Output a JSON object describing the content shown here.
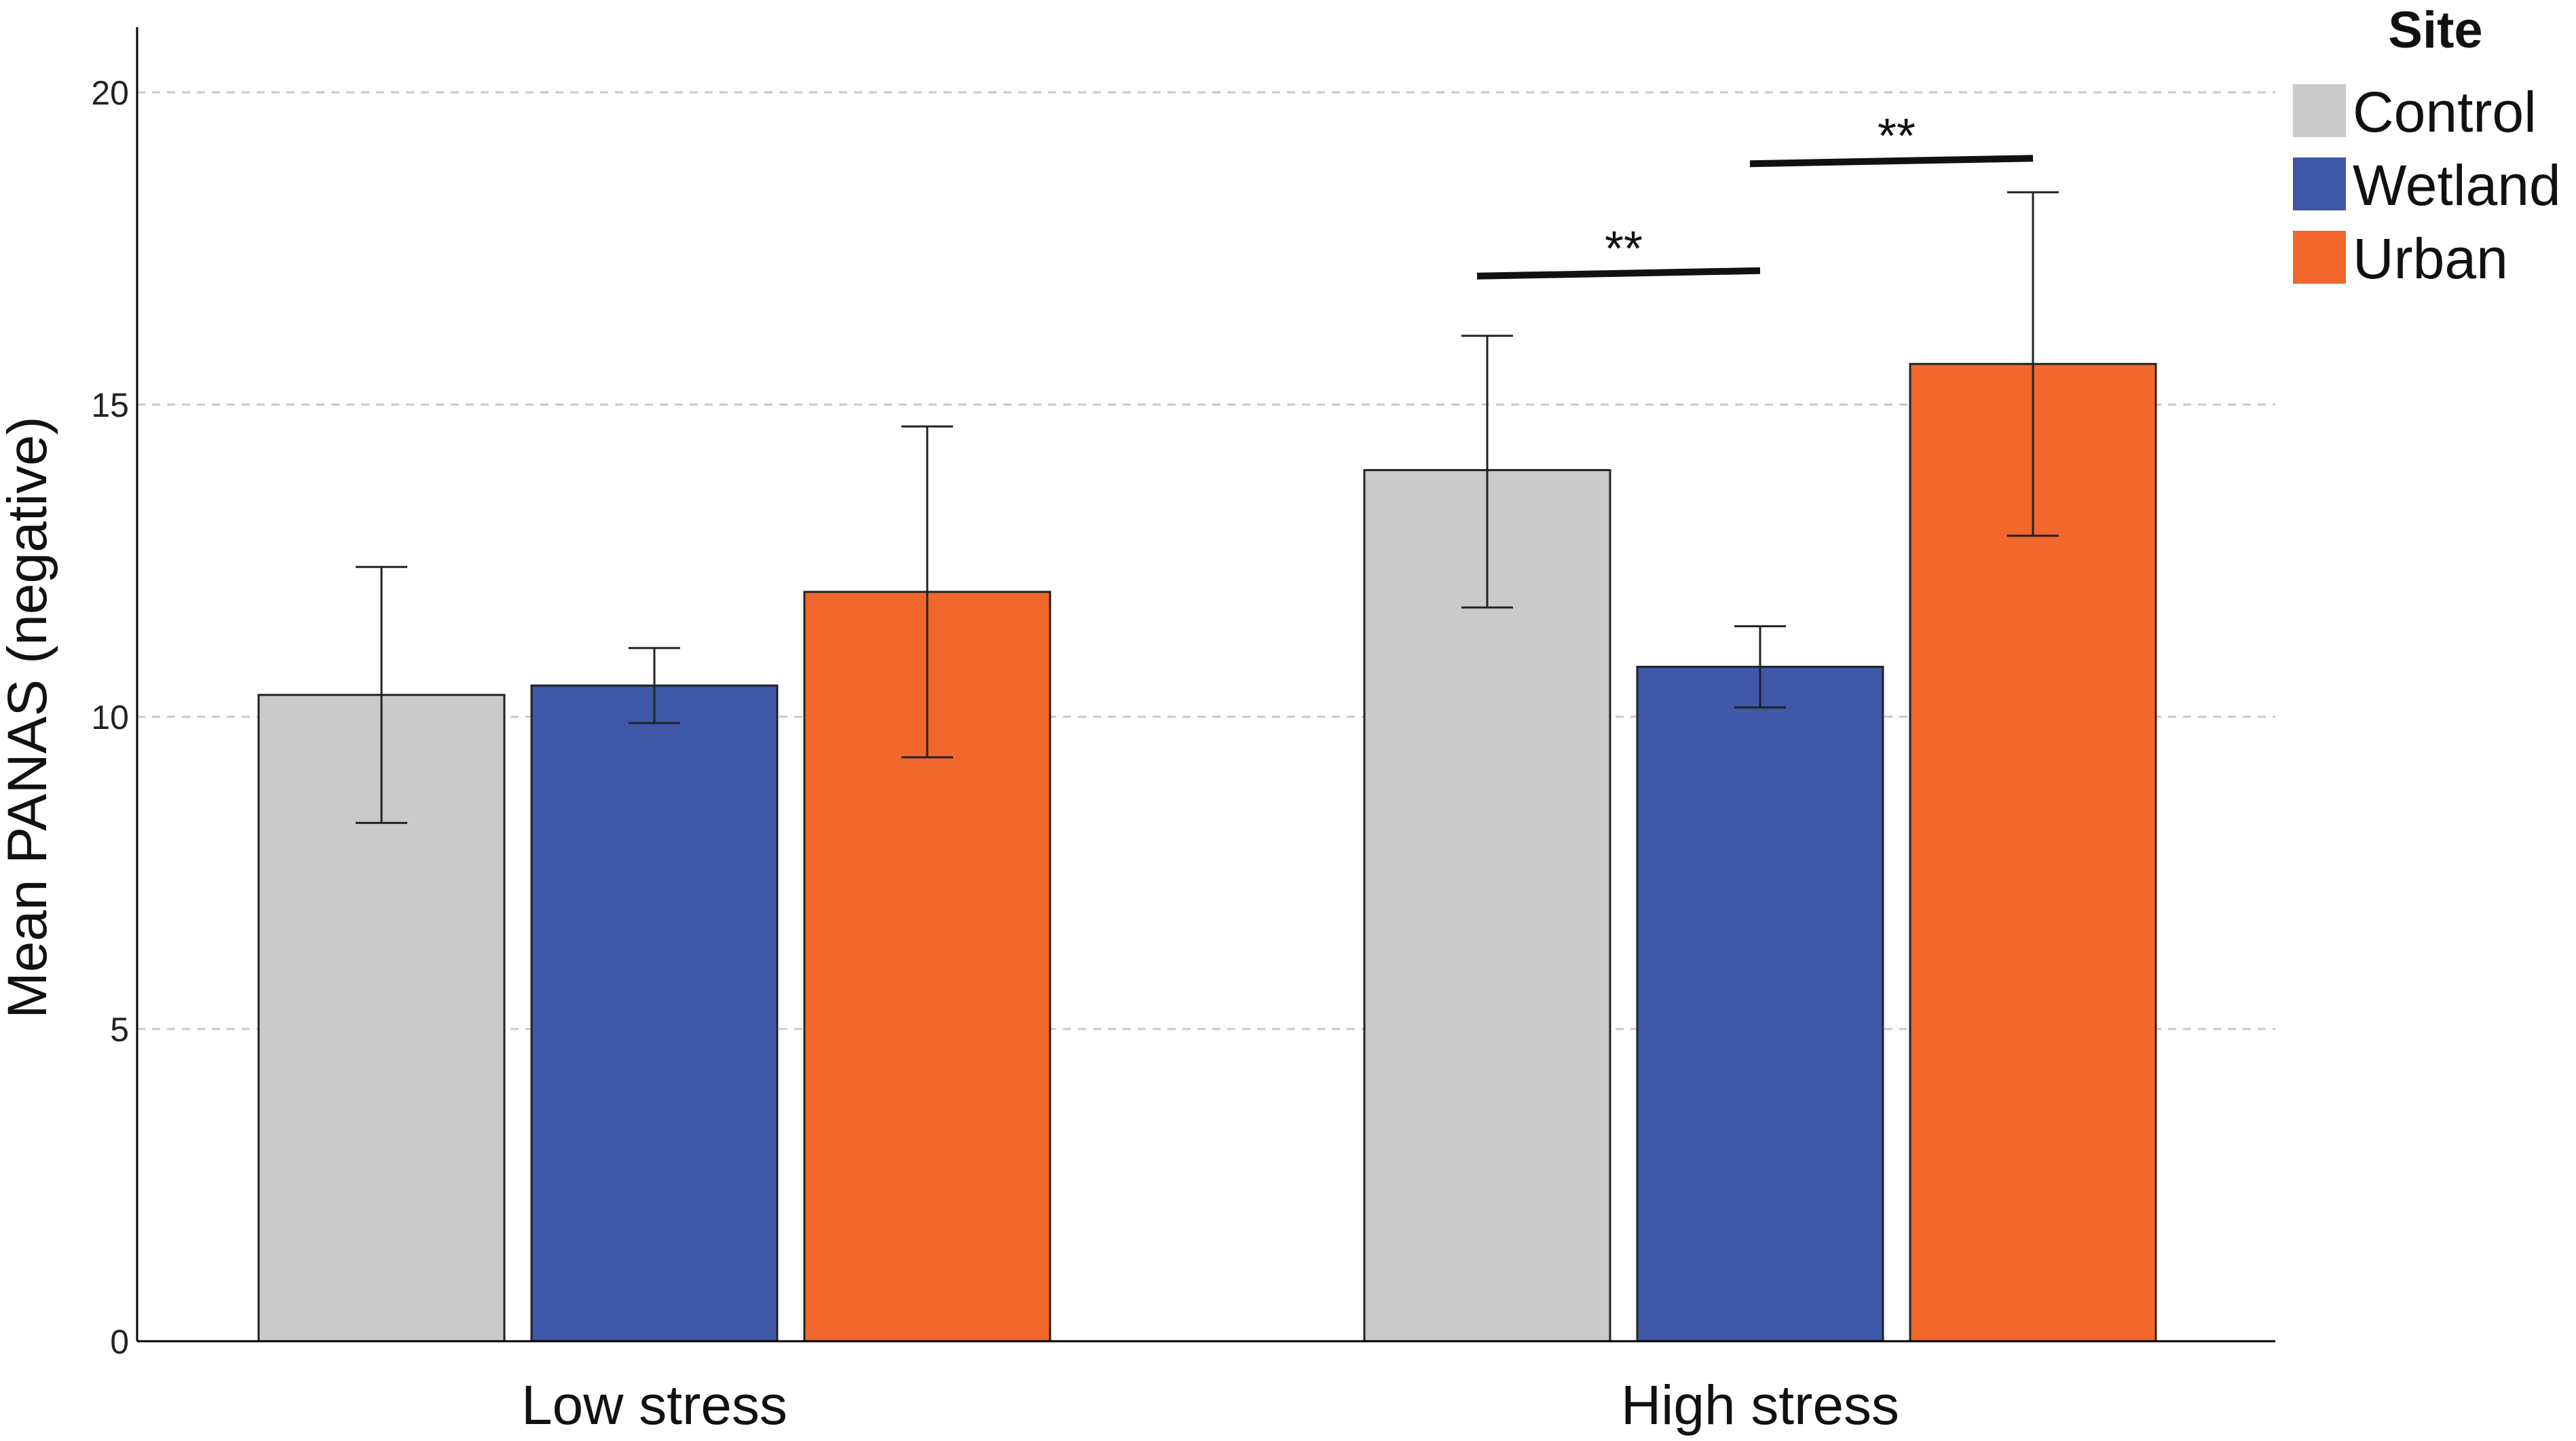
{
  "chart_data": {
    "type": "bar",
    "title": "",
    "xlabel": "",
    "ylabel": "Mean PANAS (negative)",
    "ylim": [
      0,
      21
    ],
    "yticks": [
      0,
      5,
      10,
      15,
      20
    ],
    "grid": true,
    "categories": [
      "Low stress",
      "High stress"
    ],
    "series": [
      {
        "name": "Control",
        "color": "#cacaca",
        "values": [
          10.35,
          13.95
        ],
        "err_low": [
          8.3,
          11.75
        ],
        "err_high": [
          12.4,
          16.1
        ]
      },
      {
        "name": "Wetland",
        "color": "#3e58a7",
        "values": [
          10.5,
          10.8
        ],
        "err_low": [
          9.9,
          10.15
        ],
        "err_high": [
          11.1,
          11.45
        ]
      },
      {
        "name": "Urban",
        "color": "#f1672c",
        "values": [
          12.0,
          15.65
        ],
        "err_low": [
          9.35,
          12.9
        ],
        "err_high": [
          14.65,
          18.4
        ]
      }
    ],
    "legend": {
      "title": "Site",
      "position": "top-right"
    },
    "annotations": [
      {
        "text": "**",
        "category": "High stress",
        "from_series": "Control",
        "to_series": "Wetland",
        "y": 17.1
      },
      {
        "text": "**",
        "category": "High stress",
        "from_series": "Wetland",
        "to_series": "Urban",
        "y": 18.9
      }
    ]
  }
}
